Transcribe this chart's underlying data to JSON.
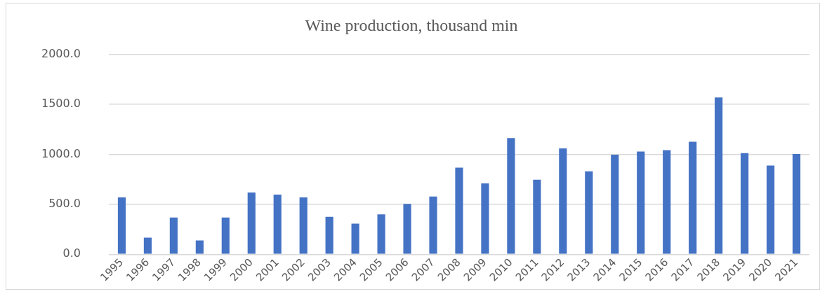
{
  "chart_data": {
    "type": "bar",
    "title": "Wine production, thousand min",
    "categories": [
      "1995",
      "1996",
      "1997",
      "1998",
      "1999",
      "2000",
      "2001",
      "2002",
      "2003",
      "2004",
      "2005",
      "2006",
      "2007",
      "2008",
      "2009",
      "2010",
      "2011",
      "2012",
      "2013",
      "2014",
      "2015",
      "2016",
      "2017",
      "2018",
      "2019",
      "2020",
      "2021"
    ],
    "values": [
      570,
      167,
      368,
      139,
      368,
      619,
      598,
      570,
      375,
      307,
      399,
      505,
      579,
      867,
      709,
      1164,
      746,
      1059,
      830,
      997,
      1028,
      1043,
      1127,
      1570,
      1012,
      889,
      1003
    ],
    "color": "#4472c4",
    "ylim": [
      0,
      2000
    ],
    "yticks": [
      {
        "value": 0,
        "label": "0.0"
      },
      {
        "value": 500,
        "label": "500.0"
      },
      {
        "value": 1000,
        "label": "1000.0"
      },
      {
        "value": 1500,
        "label": "1500.0"
      },
      {
        "value": 2000,
        "label": "2000.0"
      }
    ],
    "grid": "y",
    "legend": false
  }
}
